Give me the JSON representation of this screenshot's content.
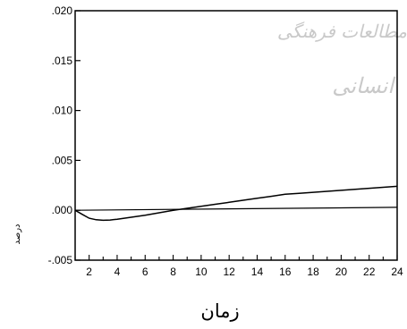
{
  "chart_data": {
    "type": "line",
    "xlabel": "زمان",
    "ylabel": "درصد",
    "xlim": [
      1,
      24
    ],
    "ylim": [
      -0.005,
      0.02
    ],
    "x_ticks": [
      2,
      4,
      6,
      8,
      10,
      12,
      14,
      16,
      18,
      20,
      22,
      24
    ],
    "x_tick_labels": [
      "2",
      "4",
      "6",
      "8",
      "10",
      "12",
      "14",
      "16",
      "18",
      "20",
      "22",
      "24"
    ],
    "y_ticks": [
      -0.005,
      0.0,
      0.005,
      0.01,
      0.015,
      0.02
    ],
    "y_tick_labels": [
      "-.005",
      ".000",
      ".005",
      ".010",
      ".015",
      ".020"
    ],
    "grid": false,
    "legend": "none",
    "series": [
      {
        "x": [
          1,
          1.5,
          2,
          2.5,
          3,
          3.5,
          4,
          5,
          6,
          7,
          8,
          9,
          10,
          11,
          12,
          13,
          14,
          15,
          16,
          17,
          18,
          19,
          20,
          21,
          22,
          23,
          24
        ],
        "values": [
          0.0,
          -0.0004,
          -0.0008,
          -0.00095,
          -0.001,
          -0.00098,
          -0.0009,
          -0.0007,
          -0.0005,
          -0.00025,
          0.0,
          0.0002,
          0.0004,
          0.0006,
          0.0008,
          0.001,
          0.0012,
          0.0014,
          0.0016,
          0.0017,
          0.0018,
          0.0019,
          0.002,
          0.0021,
          0.0022,
          0.0023,
          0.0024
        ]
      },
      {
        "x": [
          1,
          24
        ],
        "values": [
          0.0,
          0.0003
        ]
      }
    ],
    "watermark": [
      "مطالعات فرهنگی",
      "انسانی"
    ]
  }
}
